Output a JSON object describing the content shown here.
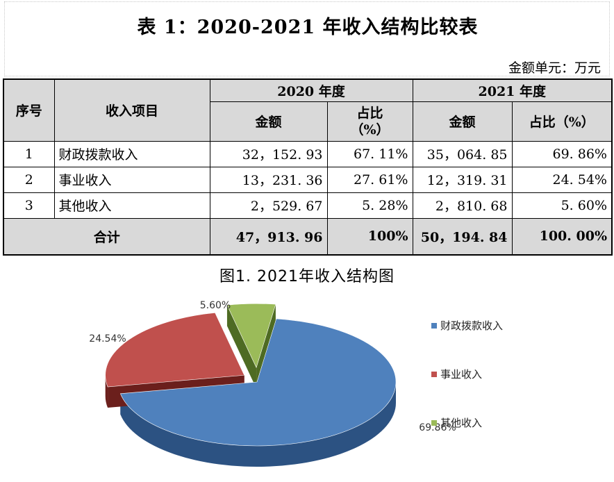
{
  "title": "表 1：2020-2021 年收入结构比较表",
  "unit": "金额单元：万元",
  "table": {
    "headers": {
      "seq": "序号",
      "item": "收入项目",
      "year1": "2020 年度",
      "year2": "2021 年度",
      "amount1": "金额",
      "ratio1_line1": "占比",
      "ratio1_line2": "（%）",
      "amount2": "金额",
      "ratio2": "占比（%）"
    },
    "rows": [
      {
        "seq": "1",
        "item": "财政拨款收入",
        "amount2020": "32，152. 93",
        "ratio2020": "67. 11%",
        "amount2021": "35，064. 85",
        "ratio2021": "69. 86%"
      },
      {
        "seq": "2",
        "item": "事业收入",
        "amount2020": "13，231. 36",
        "ratio2020": "27. 61%",
        "amount2021": "12，319. 31",
        "ratio2021": "24. 54%"
      },
      {
        "seq": "3",
        "item": "其他收入",
        "amount2020": "2，529. 67",
        "ratio2020": "5. 28%",
        "amount2021": "2，810. 68",
        "ratio2021": "5. 60%"
      }
    ],
    "total": {
      "label": "合计",
      "amount2020": "47，913. 96",
      "ratio2020": "100%",
      "amount2021": "50，194. 84",
      "ratio2021": "100. 00%"
    }
  },
  "chart_data": {
    "type": "pie",
    "title": "图1. 2021年收入结构图",
    "categories": [
      "财政拨款收入",
      "事业收入",
      "其他收入"
    ],
    "values": [
      69.86,
      24.54,
      5.6
    ],
    "data_labels": [
      "69.86%",
      "24.54%",
      "5.60%"
    ],
    "colors": [
      "#4f81bd",
      "#c0504d",
      "#9bbb59"
    ],
    "side_colors": [
      "#2c5282",
      "#6b1f1c",
      "#4e6b23"
    ],
    "legend_position": "right",
    "style": "3d-exploded"
  }
}
